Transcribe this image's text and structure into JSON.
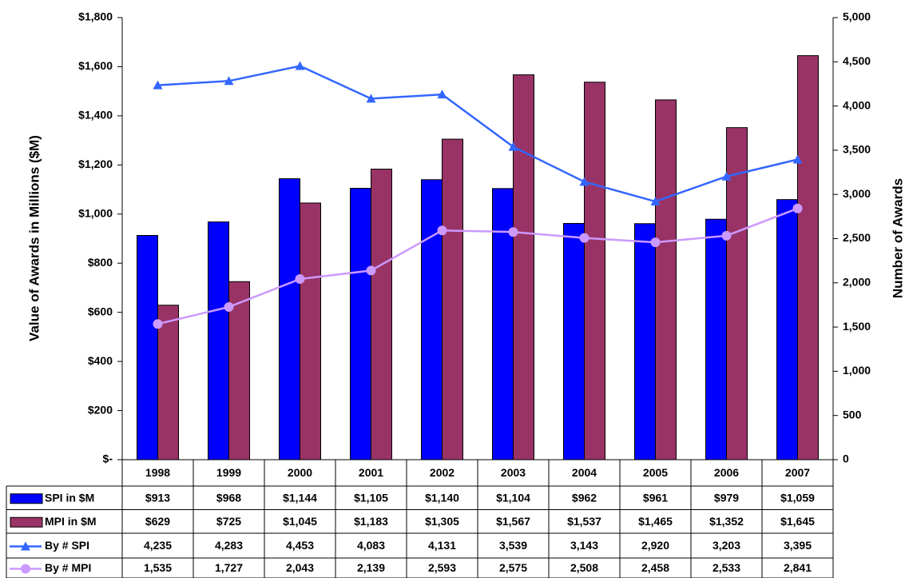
{
  "chart_data": {
    "type": "bar",
    "y_label": "Value of Awards in Millions ($M)",
    "y2_label": "Number of Awards",
    "categories": [
      "1998",
      "1999",
      "2000",
      "2001",
      "2002",
      "2003",
      "2004",
      "2005",
      "2006",
      "2007"
    ],
    "series": [
      {
        "name": "SPI in $M",
        "type": "bar",
        "color": "#0000ff",
        "values": [
          913,
          968,
          1144,
          1105,
          1140,
          1104,
          962,
          961,
          979,
          1059
        ],
        "value_labels": [
          "$913",
          "$968",
          "$1,144",
          "$1,105",
          "$1,140",
          "$1,104",
          "$962",
          "$961",
          "$979",
          "$1,059"
        ]
      },
      {
        "name": "MPI in $M",
        "type": "bar",
        "color": "#993366",
        "values": [
          629,
          725,
          1045,
          1183,
          1305,
          1567,
          1537,
          1465,
          1352,
          1645
        ],
        "value_labels": [
          "$629",
          "$725",
          "$1,045",
          "$1,183",
          "$1,305",
          "$1,567",
          "$1,537",
          "$1,465",
          "$1,352",
          "$1,645"
        ]
      },
      {
        "name": "By # SPI",
        "type": "line",
        "marker": "triangle",
        "axis": "y2",
        "color": "#3366ff",
        "values": [
          4235,
          4283,
          4453,
          4083,
          4131,
          3539,
          3143,
          2920,
          3203,
          3395
        ],
        "value_labels": [
          "4,235",
          "4,283",
          "4,453",
          "4,083",
          "4,131",
          "3,539",
          "3,143",
          "2,920",
          "3,203",
          "3,395"
        ]
      },
      {
        "name": "By # MPI",
        "type": "line",
        "marker": "circle",
        "axis": "y2",
        "color": "#cc99ff",
        "values": [
          1535,
          1727,
          2043,
          2139,
          2593,
          2575,
          2508,
          2458,
          2533,
          2841
        ],
        "value_labels": [
          "1,535",
          "1,727",
          "2,043",
          "2,139",
          "2,593",
          "2,575",
          "2,508",
          "2,458",
          "2,533",
          "2,841"
        ]
      }
    ],
    "ylim": [
      0,
      1800
    ],
    "yticks": [
      {
        "value": 0,
        "label": "$-"
      },
      {
        "value": 200,
        "label": "$200"
      },
      {
        "value": 400,
        "label": "$400"
      },
      {
        "value": 600,
        "label": "$600"
      },
      {
        "value": 800,
        "label": "$800"
      },
      {
        "value": 1000,
        "label": "$1,000"
      },
      {
        "value": 1200,
        "label": "$1,200"
      },
      {
        "value": 1400,
        "label": "$1,400"
      },
      {
        "value": 1600,
        "label": "$1,600"
      },
      {
        "value": 1800,
        "label": "$1,800"
      }
    ],
    "y2lim": [
      0,
      5000
    ],
    "y2ticks": [
      0,
      500,
      {
        "value": 1000,
        "label": "1,000"
      },
      {
        "value": 1500,
        "label": "1,500"
      },
      {
        "value": 2000,
        "label": "2,000"
      },
      {
        "value": 2500,
        "label": "2,500"
      },
      {
        "value": 3000,
        "label": "3,000"
      },
      {
        "value": 3500,
        "label": "3,500"
      },
      {
        "value": 4000,
        "label": "4,000"
      },
      {
        "value": 4500,
        "label": "4,500"
      },
      {
        "value": 5000,
        "label": "5,000"
      }
    ]
  }
}
